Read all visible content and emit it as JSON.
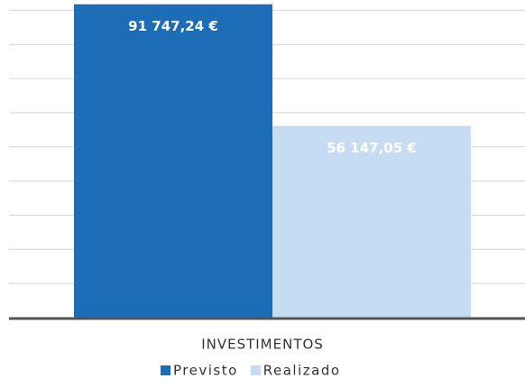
{
  "chart_data": {
    "type": "bar",
    "categories": [
      "INVESTIMENTOS"
    ],
    "series": [
      {
        "name": "Previsto",
        "color": "#1c6db6",
        "values": [
          91747.24
        ],
        "value_labels": [
          "91 747,24 €"
        ]
      },
      {
        "name": "Realizado",
        "color": "#c5dcf2",
        "values": [
          56147.05
        ],
        "value_labels": [
          "56 147,05 €"
        ]
      }
    ],
    "ylim": [
      0,
      93000
    ],
    "yticks": [
      10000,
      20000,
      30000,
      40000,
      50000,
      60000,
      70000,
      80000,
      90000
    ],
    "grid": true,
    "legend": "bottom"
  }
}
